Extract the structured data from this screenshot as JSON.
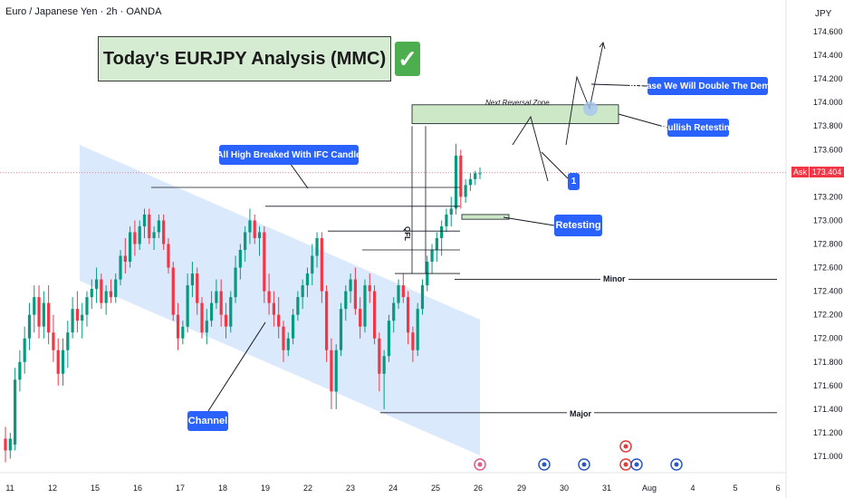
{
  "header": {
    "symbol": "Euro / Japanese Yen · 2h · OANDA",
    "currency": "JPY"
  },
  "title": {
    "text": "Today's EURJPY Analysis (MMC)",
    "check": "✓"
  },
  "current_price": {
    "ask_label": "Ask",
    "value": "173.404",
    "colors": {
      "tag": "#f23645"
    }
  },
  "annotations": {
    "all_high": "All High Breaked With IFC Candle",
    "double_demand": "In Case We Will Double The Demand",
    "bullish_retesting": "Bullish Retesting",
    "retesting": "Retesting",
    "channel": "Channel",
    "reversal_zone": "Next Reversal Zone",
    "marker_1": "1",
    "qfl": "QFL",
    "minor": "Minor",
    "major": "Major"
  },
  "chart_data": {
    "type": "candlestick",
    "title": "Today's EURJPY Analysis (MMC)",
    "symbol": "Euro / Japanese Yen · 2h · OANDA",
    "ylim": [
      170.9,
      174.75
    ],
    "y_ticks": [
      171.0,
      171.2,
      171.4,
      171.6,
      171.8,
      172.0,
      172.2,
      172.4,
      172.6,
      172.8,
      173.0,
      173.2,
      173.4,
      173.6,
      173.8,
      174.0,
      174.2,
      174.4,
      174.6
    ],
    "y_tick_labels": [
      "171.000",
      "171.200",
      "171.400",
      "171.600",
      "171.800",
      "172.000",
      "172.200",
      "172.400",
      "172.600",
      "172.800",
      "173.000",
      "173.200",
      "173.400",
      "173.600",
      "173.800",
      "174.000",
      "174.200",
      "174.400",
      "174.600"
    ],
    "x_ticks": [
      "11",
      "12",
      "15",
      "16",
      "17",
      "18",
      "19",
      "22",
      "23",
      "24",
      "25",
      "26",
      "29",
      "30",
      "31",
      "Aug",
      "4",
      "5",
      "6"
    ],
    "current_price": 173.404,
    "levels": {
      "minor": 172.5,
      "major": 171.37,
      "retest_zone": [
        173.01,
        173.05
      ],
      "reversal_zone": [
        173.82,
        173.98
      ]
    },
    "ohlc": [
      [
        171.15,
        171.25,
        170.95,
        171.05
      ],
      [
        171.05,
        171.2,
        170.98,
        171.15
      ],
      [
        171.1,
        171.75,
        171.05,
        171.65
      ],
      [
        171.65,
        171.9,
        171.55,
        171.8
      ],
      [
        171.8,
        172.1,
        171.7,
        172.0
      ],
      [
        172.0,
        172.3,
        171.9,
        172.2
      ],
      [
        172.2,
        172.45,
        172.05,
        172.35
      ],
      [
        172.35,
        172.45,
        172.0,
        172.1
      ],
      [
        172.1,
        172.4,
        172.0,
        172.3
      ],
      [
        172.3,
        172.45,
        171.95,
        172.05
      ],
      [
        172.05,
        172.2,
        171.8,
        171.9
      ],
      [
        171.9,
        172.0,
        171.6,
        171.7
      ],
      [
        171.7,
        172.0,
        171.6,
        171.9
      ],
      [
        171.9,
        172.15,
        171.75,
        172.05
      ],
      [
        172.05,
        172.35,
        172.0,
        172.25
      ],
      [
        172.25,
        172.4,
        172.05,
        172.15
      ],
      [
        172.15,
        172.3,
        172.0,
        172.2
      ],
      [
        172.2,
        172.4,
        172.1,
        172.35
      ],
      [
        172.35,
        172.5,
        172.25,
        172.42
      ],
      [
        172.42,
        172.6,
        172.3,
        172.5
      ],
      [
        172.5,
        172.55,
        172.25,
        172.3
      ],
      [
        172.3,
        172.45,
        172.2,
        172.4
      ],
      [
        172.4,
        172.5,
        172.3,
        172.35
      ],
      [
        172.35,
        172.55,
        172.3,
        172.5
      ],
      [
        172.5,
        172.75,
        172.45,
        172.7
      ],
      [
        172.7,
        172.85,
        172.55,
        172.65
      ],
      [
        172.65,
        172.95,
        172.6,
        172.9
      ],
      [
        172.9,
        173.0,
        172.7,
        172.8
      ],
      [
        172.8,
        173.0,
        172.75,
        172.95
      ],
      [
        172.95,
        173.1,
        172.85,
        173.05
      ],
      [
        173.05,
        173.1,
        172.8,
        172.85
      ],
      [
        172.85,
        172.95,
        172.75,
        172.9
      ],
      [
        172.9,
        173.05,
        172.85,
        173.0
      ],
      [
        173.0,
        173.05,
        172.75,
        172.8
      ],
      [
        172.8,
        172.85,
        172.55,
        172.6
      ],
      [
        172.6,
        172.65,
        172.15,
        172.2
      ],
      [
        172.2,
        172.3,
        171.9,
        172.0
      ],
      [
        172.0,
        172.15,
        171.95,
        172.1
      ],
      [
        172.1,
        172.55,
        172.05,
        172.45
      ],
      [
        172.45,
        172.65,
        172.35,
        172.55
      ],
      [
        172.55,
        172.6,
        172.2,
        172.3
      ],
      [
        172.3,
        172.35,
        172.0,
        172.05
      ],
      [
        172.05,
        172.25,
        171.95,
        172.15
      ],
      [
        172.15,
        172.4,
        172.1,
        172.3
      ],
      [
        172.3,
        172.5,
        172.25,
        172.4
      ],
      [
        172.4,
        172.5,
        172.1,
        172.2
      ],
      [
        172.2,
        172.3,
        172.0,
        172.1
      ],
      [
        172.1,
        172.4,
        172.05,
        172.35
      ],
      [
        172.35,
        172.7,
        172.3,
        172.6
      ],
      [
        172.6,
        172.8,
        172.5,
        172.75
      ],
      [
        172.75,
        172.95,
        172.65,
        172.9
      ],
      [
        172.9,
        173.1,
        172.8,
        173.0
      ],
      [
        173.0,
        173.05,
        172.8,
        172.85
      ],
      [
        172.85,
        172.95,
        172.7,
        172.9
      ],
      [
        172.9,
        172.95,
        172.3,
        172.4
      ],
      [
        172.4,
        172.55,
        172.2,
        172.3
      ],
      [
        172.3,
        172.4,
        172.1,
        172.2
      ],
      [
        172.2,
        172.35,
        172.0,
        172.1
      ],
      [
        172.1,
        172.15,
        171.8,
        171.9
      ],
      [
        171.9,
        172.05,
        171.85,
        172.0
      ],
      [
        172.0,
        172.25,
        171.95,
        172.2
      ],
      [
        172.2,
        172.4,
        172.15,
        172.35
      ],
      [
        172.35,
        172.5,
        172.25,
        172.45
      ],
      [
        172.45,
        172.6,
        172.35,
        172.55
      ],
      [
        172.55,
        172.8,
        172.45,
        172.7
      ],
      [
        172.7,
        172.9,
        172.6,
        172.85
      ],
      [
        172.85,
        172.9,
        172.3,
        172.4
      ],
      [
        172.4,
        172.45,
        171.8,
        171.9
      ],
      [
        171.9,
        172.0,
        171.4,
        171.55
      ],
      [
        171.55,
        171.95,
        171.4,
        171.9
      ],
      [
        171.9,
        172.3,
        171.85,
        172.25
      ],
      [
        172.25,
        172.45,
        172.15,
        172.4
      ],
      [
        172.4,
        172.55,
        172.3,
        172.5
      ],
      [
        172.5,
        172.6,
        172.2,
        172.25
      ],
      [
        172.25,
        172.35,
        172.0,
        172.1
      ],
      [
        172.1,
        172.5,
        172.05,
        172.45
      ],
      [
        172.45,
        172.55,
        172.3,
        172.4
      ],
      [
        172.4,
        172.45,
        171.95,
        172.0
      ],
      [
        172.0,
        172.05,
        171.55,
        171.7
      ],
      [
        171.7,
        171.9,
        171.4,
        171.85
      ],
      [
        171.85,
        172.2,
        171.8,
        172.15
      ],
      [
        172.15,
        172.35,
        172.05,
        172.3
      ],
      [
        172.3,
        172.5,
        172.25,
        172.45
      ],
      [
        172.45,
        172.55,
        172.3,
        172.35
      ],
      [
        172.35,
        172.4,
        171.95,
        172.05
      ],
      [
        172.05,
        172.1,
        171.8,
        171.9
      ],
      [
        171.9,
        172.3,
        171.85,
        172.25
      ],
      [
        172.25,
        172.5,
        172.2,
        172.45
      ],
      [
        172.45,
        172.7,
        172.4,
        172.65
      ],
      [
        172.65,
        172.8,
        172.55,
        172.75
      ],
      [
        172.75,
        172.9,
        172.65,
        172.85
      ],
      [
        172.85,
        173.0,
        172.7,
        172.95
      ],
      [
        172.95,
        173.1,
        172.9,
        173.05
      ],
      [
        173.05,
        173.2,
        172.95,
        173.1
      ],
      [
        173.1,
        173.65,
        173.05,
        173.55
      ],
      [
        173.55,
        173.6,
        173.1,
        173.2
      ],
      [
        173.2,
        173.35,
        173.15,
        173.3
      ],
      [
        173.3,
        173.4,
        173.25,
        173.35
      ],
      [
        173.35,
        173.42,
        173.3,
        173.4
      ],
      [
        173.4,
        173.45,
        173.35,
        173.4
      ]
    ]
  }
}
